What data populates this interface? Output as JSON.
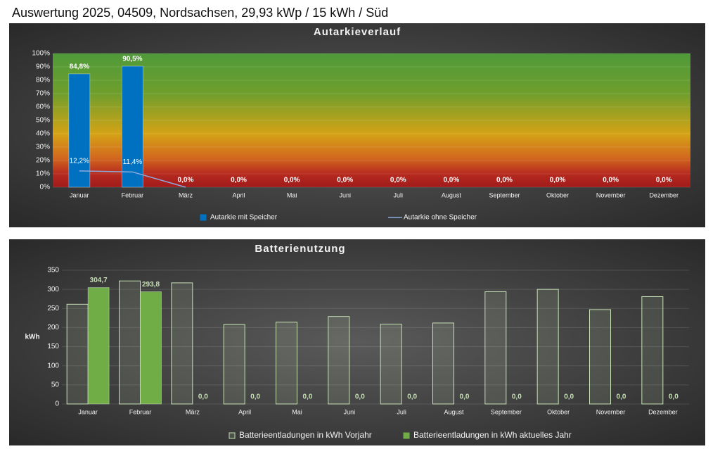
{
  "header": {
    "title": "Auswertung 2025, 04509, Nordsachsen, 29,93 kWp / 15 kWh / Süd"
  },
  "chart_data": [
    {
      "type": "bar",
      "title": "Autarkieverlauf",
      "categories": [
        "Januar",
        "Februar",
        "März",
        "April",
        "Mai",
        "Juni",
        "Juli",
        "August",
        "September",
        "Oktober",
        "November",
        "Dezember"
      ],
      "series": [
        {
          "name": "Autarkie mit Speicher",
          "color": "#0070c0",
          "values": [
            84.8,
            90.5,
            0,
            0,
            0,
            0,
            0,
            0,
            0,
            0,
            0,
            0
          ],
          "value_labels": [
            "84,8%",
            "90,5%",
            "0,0%",
            "0,0%",
            "0,0%",
            "0,0%",
            "0,0%",
            "0,0%",
            "0,0%",
            "0,0%",
            "0,0%",
            "0,0%"
          ]
        },
        {
          "name": "Autarkie ohne Speicher",
          "type": "line",
          "color": "#8ea9db",
          "values": [
            12.2,
            11.4,
            0,
            null,
            null,
            null,
            null,
            null,
            null,
            null,
            null,
            null
          ],
          "value_labels": [
            "12,2%",
            "11,4%",
            null,
            null,
            null,
            null,
            null,
            null,
            null,
            null,
            null,
            null
          ]
        }
      ],
      "ylim": [
        0,
        100
      ],
      "yticks": [
        {
          "value": 0,
          "label": "0%"
        },
        {
          "value": 10,
          "label": "10%"
        },
        {
          "value": 20,
          "label": "20%"
        },
        {
          "value": 30,
          "label": "30%"
        },
        {
          "value": 40,
          "label": "40%"
        },
        {
          "value": 50,
          "label": "50%"
        },
        {
          "value": 60,
          "label": "60%"
        },
        {
          "value": 70,
          "label": "70%"
        },
        {
          "value": 80,
          "label": "80%"
        },
        {
          "value": 90,
          "label": "90%"
        },
        {
          "value": 100,
          "label": "100%"
        }
      ],
      "grid": true,
      "legend": "bottom"
    },
    {
      "type": "bar",
      "title": "Batterienutzung",
      "y_label": "kWh",
      "categories": [
        "Januar",
        "Februar",
        "März",
        "April",
        "Mai",
        "Juni",
        "Juli",
        "August",
        "September",
        "Oktober",
        "November",
        "Dezember"
      ],
      "series": [
        {
          "name": "Batterieentladungen in kWh Vorjahr",
          "color": "#c5e0b4",
          "outline": true,
          "values": [
            261,
            322,
            317,
            208,
            214,
            229,
            209,
            212,
            294,
            300,
            247,
            281
          ]
        },
        {
          "name": "Batterieentladungen in kWh aktuelles Jahr",
          "color": "#70ad47",
          "values": [
            304.7,
            293.8,
            0,
            0,
            0,
            0,
            0,
            0,
            0,
            0,
            0,
            0
          ],
          "value_labels": [
            "304,7",
            "293,8",
            "0,0",
            "0,0",
            "0,0",
            "0,0",
            "0,0",
            "0,0",
            "0,0",
            "0,0",
            "0,0",
            "0,0"
          ]
        }
      ],
      "ylim": [
        0,
        350
      ],
      "yticks": [
        0,
        50,
        100,
        150,
        200,
        250,
        300,
        350
      ],
      "grid": true,
      "legend": "bottom"
    }
  ]
}
